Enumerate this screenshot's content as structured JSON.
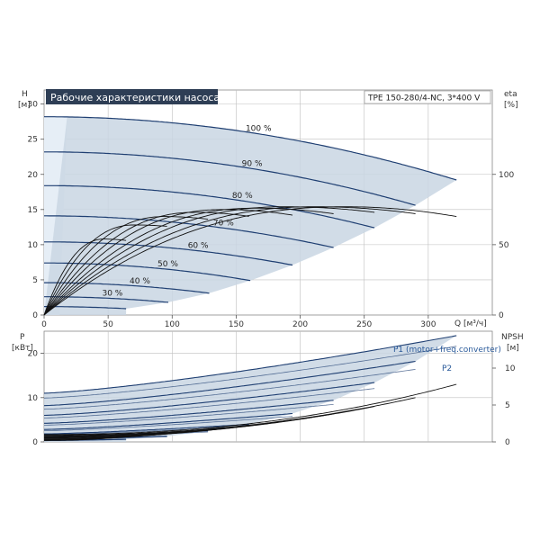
{
  "chart_data": [
    {
      "type": "line",
      "title": "Рабочие характеристики насоса",
      "model": "TPE 150-280/4-NC, 3*400 V",
      "ylabel": "H",
      "yunit": "[м]",
      "y2label": "eta",
      "y2unit": "[%]",
      "xlabel": "Q [м³/ч]",
      "xlim": [
        0,
        350
      ],
      "ylim": [
        0,
        32
      ],
      "y2lim": [
        0,
        160
      ],
      "xticks": [
        "0",
        "50",
        "100",
        "150",
        "200",
        "250",
        "300"
      ],
      "yticks": [
        "0",
        "5",
        "10",
        "15",
        "20",
        "25",
        "30"
      ],
      "y2ticks": [
        "0",
        "50",
        "100"
      ],
      "grid": true,
      "head_series": [
        {
          "label": "100 %",
          "h0": 28.2,
          "qmax": 322,
          "hend": 19.2
        },
        {
          "label": "90 %",
          "h0": 23.2,
          "qmax": 290,
          "hend": 15.6
        },
        {
          "label": "80 %",
          "h0": 18.4,
          "qmax": 258,
          "hend": 12.4
        },
        {
          "label": "70 %",
          "h0": 14.1,
          "qmax": 226,
          "hend": 9.6
        },
        {
          "label": "60 %",
          "h0": 10.4,
          "qmax": 194,
          "hend": 7.1
        },
        {
          "label": "50 %",
          "h0": 7.4,
          "qmax": 161,
          "hend": 4.9
        },
        {
          "label": "40 %",
          "h0": 4.6,
          "qmax": 129,
          "hend": 3.1
        },
        {
          "label": "30 %",
          "h0": 2.6,
          "qmax": 97,
          "hend": 1.8
        },
        {
          "label": "",
          "h0": 1.2,
          "qmax": 64,
          "hend": 0.9
        }
      ],
      "eta_series": [
        {
          "qmax": 322,
          "eta_max": 77,
          "q_bep": 235,
          "eta_end": 70
        },
        {
          "qmax": 290,
          "eta_max": 77,
          "q_bep": 212,
          "eta_end": 72
        },
        {
          "qmax": 258,
          "eta_max": 77,
          "q_bep": 188,
          "eta_end": 73
        },
        {
          "qmax": 226,
          "eta_max": 76,
          "q_bep": 165,
          "eta_end": 72
        },
        {
          "qmax": 194,
          "eta_max": 75,
          "q_bep": 140,
          "eta_end": 71
        },
        {
          "qmax": 161,
          "eta_max": 73,
          "q_bep": 118,
          "eta_end": 70
        },
        {
          "qmax": 129,
          "eta_max": 70,
          "q_bep": 94,
          "eta_end": 68
        },
        {
          "qmax": 97,
          "eta_max": 64,
          "q_bep": 70,
          "eta_end": 63
        },
        {
          "qmax": 64,
          "eta_max": 54,
          "q_bep": 47,
          "eta_end": 53
        }
      ]
    },
    {
      "type": "line",
      "ylabel": "P",
      "yunit": "[кВт]",
      "y2label": "NPSH",
      "y2unit": "[м]",
      "xlim": [
        0,
        350
      ],
      "ylim": [
        0,
        25
      ],
      "y2lim": [
        0,
        15
      ],
      "yticks": [
        "0",
        "10",
        "20"
      ],
      "y2ticks": [
        "0",
        "5",
        "10"
      ],
      "grid": true,
      "legend": {
        "p1": "P1 (motor+freq.converter)",
        "p2": "P2"
      },
      "power_series": [
        {
          "qmax": 322,
          "p0": 11.0,
          "pend": 24.0
        },
        {
          "qmax": 290,
          "p0": 8.2,
          "pend": 18.2
        },
        {
          "qmax": 258,
          "p0": 6.0,
          "pend": 13.4
        },
        {
          "qmax": 226,
          "p0": 4.2,
          "pend": 9.4
        },
        {
          "qmax": 194,
          "p0": 2.8,
          "pend": 6.4
        },
        {
          "qmax": 161,
          "p0": 1.8,
          "pend": 4.0
        },
        {
          "qmax": 129,
          "p0": 1.1,
          "pend": 2.5
        },
        {
          "qmax": 97,
          "p0": 0.6,
          "pend": 1.3
        },
        {
          "qmax": 64,
          "p0": 0.3,
          "pend": 0.6
        }
      ],
      "npsh_series": [
        {
          "qmax": 322,
          "n0": 1.0,
          "nend": 7.8
        },
        {
          "qmax": 290,
          "n0": 0.9,
          "nend": 6.0
        },
        {
          "qmax": 258,
          "n0": 0.8,
          "nend": 4.8
        },
        {
          "qmax": 226,
          "n0": 0.7,
          "nend": 3.8
        },
        {
          "qmax": 194,
          "n0": 0.6,
          "nend": 3.0
        },
        {
          "qmax": 161,
          "n0": 0.5,
          "nend": 2.3
        },
        {
          "qmax": 129,
          "n0": 0.4,
          "nend": 1.7
        },
        {
          "qmax": 97,
          "n0": 0.3,
          "nend": 1.2
        },
        {
          "qmax": 64,
          "n0": 0.2,
          "nend": 0.7
        }
      ]
    }
  ],
  "colors": {
    "region_fill": "#c9d6e3",
    "light_fill": "#e6eef6",
    "curve": "#1f3f72",
    "black_curve": "#111111",
    "grid": "#bfbfbf",
    "title_bg": "#2e3e55"
  }
}
